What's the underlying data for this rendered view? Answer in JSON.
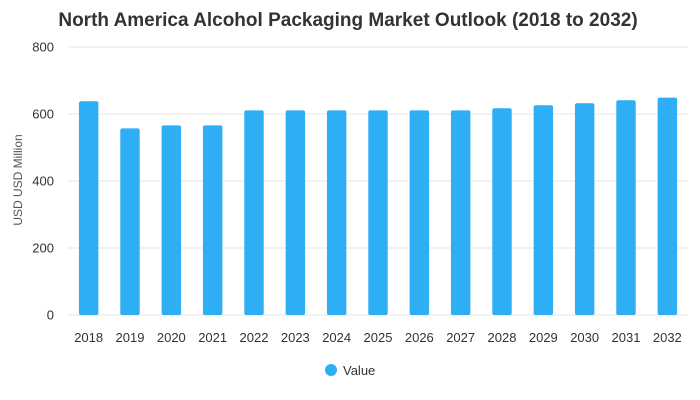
{
  "chart_data": {
    "type": "bar",
    "title": "North America Alcohol Packaging Market Outlook (2018 to 2032)",
    "xlabel": "",
    "ylabel": "USD USD Million",
    "ylim": [
      0,
      800
    ],
    "yticks": [
      0,
      200,
      400,
      600,
      800
    ],
    "grid": true,
    "legend_position": "bottom",
    "categories": [
      "2018",
      "2019",
      "2020",
      "2021",
      "2022",
      "2023",
      "2024",
      "2025",
      "2026",
      "2027",
      "2028",
      "2029",
      "2030",
      "2031",
      "2032"
    ],
    "series": [
      {
        "name": "Value",
        "color": "#2EAEF5",
        "values": [
          638,
          557,
          566,
          566,
          611,
          611,
          611,
          611,
          611,
          611,
          617,
          626,
          632,
          641,
          649
        ]
      }
    ]
  }
}
